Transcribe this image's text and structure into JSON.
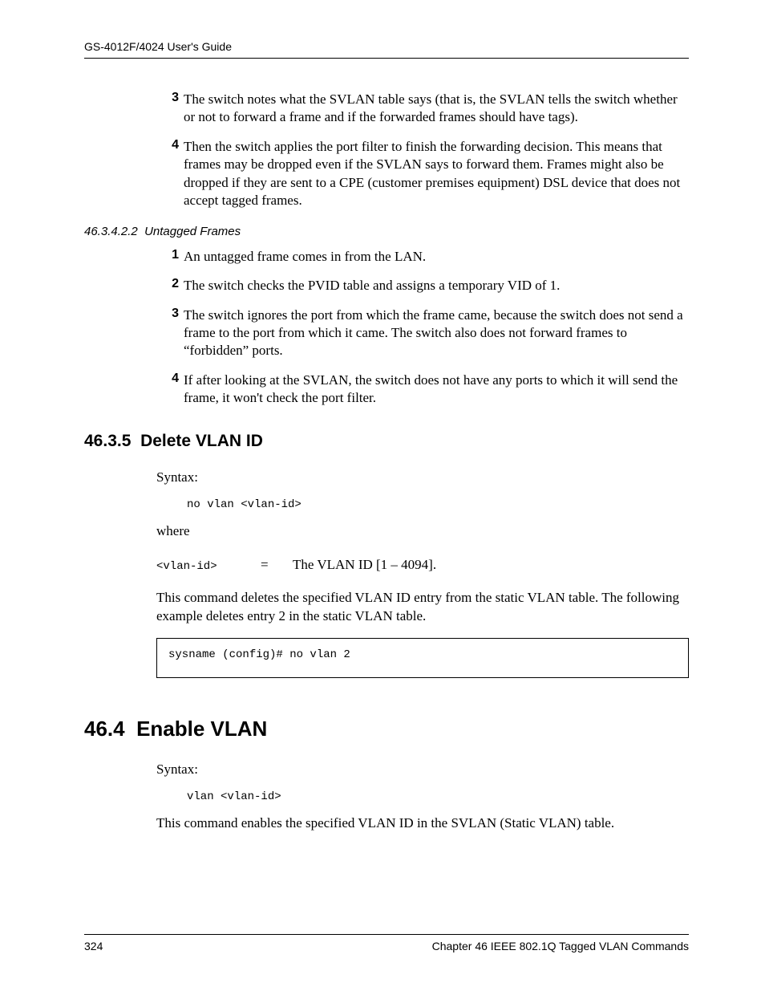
{
  "header": {
    "title": "GS-4012F/4024 User's Guide"
  },
  "list1": {
    "items": [
      {
        "num": "3",
        "text": "The switch notes what the SVLAN table says (that is, the SVLAN tells the switch whether or not to forward a frame and if the forwarded frames should have tags)."
      },
      {
        "num": "4",
        "text": "Then the switch applies the port filter to finish the forwarding decision. This means that frames may be dropped even if the SVLAN says to forward them. Frames might also be dropped if they are sent to a CPE (customer premises equipment) DSL device that does not accept tagged frames."
      }
    ]
  },
  "subheading1": {
    "number": "46.3.4.2.2",
    "title": "Untagged Frames"
  },
  "list2": {
    "items": [
      {
        "num": "1",
        "text": "An untagged frame comes in from the LAN."
      },
      {
        "num": "2",
        "text": "The switch checks the PVID table and assigns a temporary VID of 1."
      },
      {
        "num": "3",
        "text": "The switch ignores the port from which the frame came, because the switch does not send a frame to the port from which it came. The switch also does not forward frames to “forbidden” ports."
      },
      {
        "num": "4",
        "text": "If after looking at the SVLAN, the switch does not have any ports to which it will send the frame, it won't check the port filter."
      }
    ]
  },
  "section_delete": {
    "number": "46.3.5",
    "title": "Delete VLAN ID",
    "syntax_label": "Syntax:",
    "syntax_code": "no vlan <vlan-id>",
    "where_label": "where",
    "where_param": "<vlan-id>",
    "where_eq": "=",
    "where_desc": "The VLAN ID [1 – 4094].",
    "desc": "This command deletes the specified VLAN ID entry from the static VLAN table. The following example deletes entry 2 in the static VLAN table.",
    "example": "sysname (config)# no vlan 2"
  },
  "section_enable": {
    "number": "46.4",
    "title": "Enable VLAN",
    "syntax_label": "Syntax:",
    "syntax_code": "vlan <vlan-id>",
    "desc": "This command enables the specified VLAN ID in the SVLAN (Static VLAN) table."
  },
  "footer": {
    "page": "324",
    "chapter": "Chapter 46 IEEE 802.1Q Tagged VLAN Commands"
  }
}
